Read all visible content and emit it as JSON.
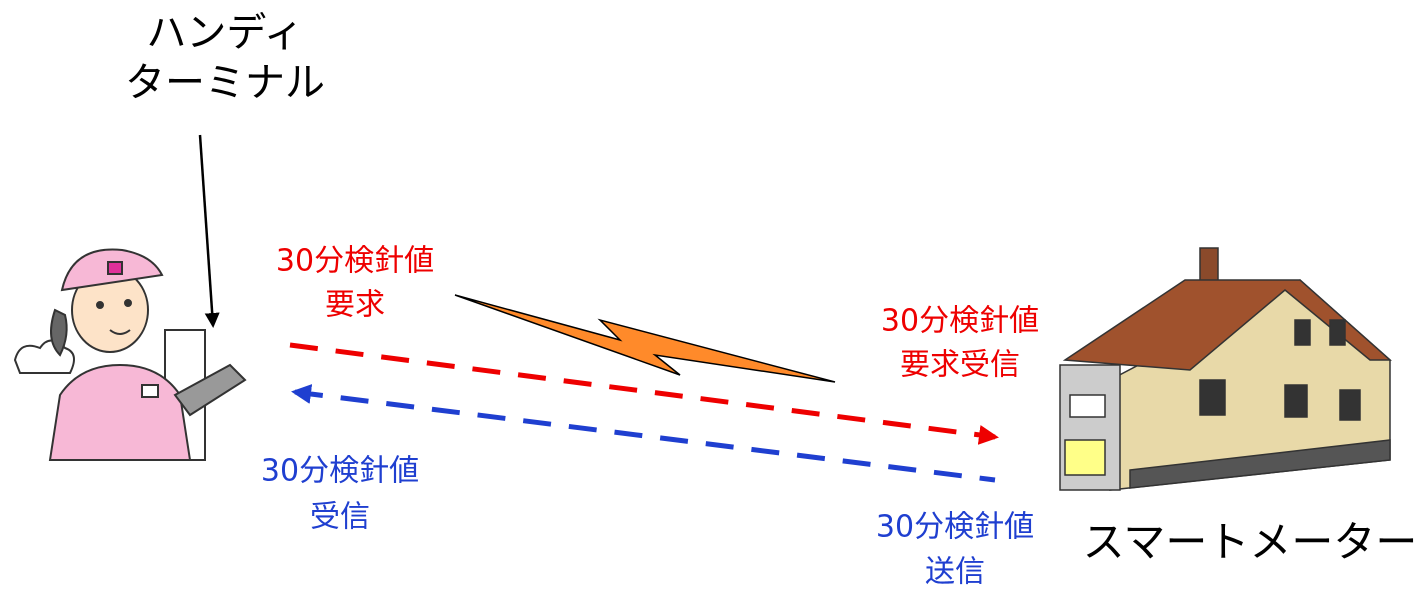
{
  "handy_terminal": {
    "lines": [
      "ハンディ",
      "ターミナル"
    ]
  },
  "request": {
    "lines": [
      "30分検針値",
      "要求"
    ]
  },
  "request_received": {
    "lines": [
      "30分検針値",
      "要求受信"
    ]
  },
  "received": {
    "lines": [
      "30分検針値",
      "受信"
    ]
  },
  "sent": {
    "lines": [
      "30分検針値",
      "送信"
    ]
  },
  "smart_meter": {
    "label": "スマートメーター"
  }
}
